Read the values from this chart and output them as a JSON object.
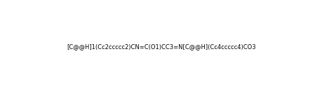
{
  "smiles": "[C@@H]1(Cc2ccccc2)CN=C(O1)CC3=N[C@@H](Cc4ccccc4)CO3",
  "title": "",
  "figsize": [
    4.6,
    1.34
  ],
  "dpi": 100,
  "background": "#ffffff"
}
